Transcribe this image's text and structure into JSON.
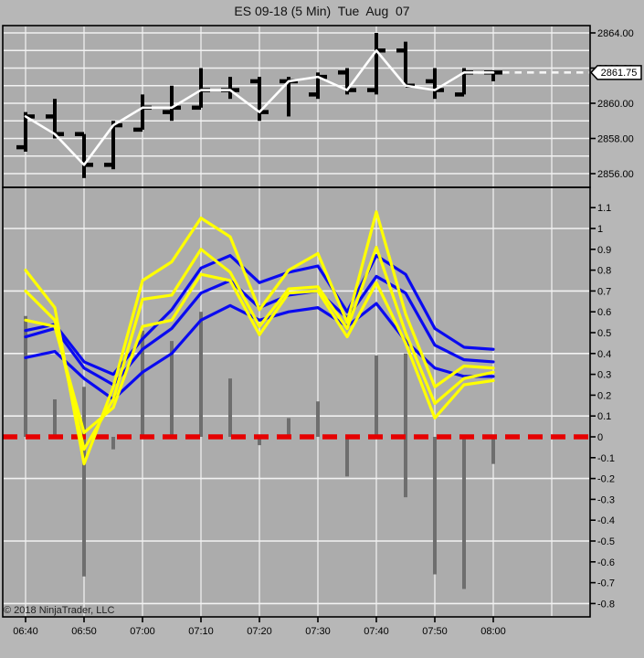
{
  "title": "ES 09-18 (5 Min)  Tue  Aug  07",
  "copyright": "© 2018 NinjaTrader, LLC",
  "price_marker": {
    "value": "2861.75"
  },
  "colors": {
    "outer_background": "#b7b7b7",
    "plot_background": "#acacac",
    "grid_vertical": "#e2e2e2",
    "grid_horizontal": "#f2f2f2",
    "border": "#000000",
    "ohlc_bar": "#000000",
    "close_line": "#ffffff",
    "last_price_dash": "#f5f5f5",
    "yellow_line": "#ffff00",
    "blue_line": "#0a0af0",
    "histogram": "#6e6e6e",
    "zero_line": "#e60000",
    "axis_text": "#000000",
    "marker_bg": "#ffffff"
  },
  "x_axis": {
    "labels": [
      "06:40",
      "06:50",
      "07:00",
      "07:10",
      "07:20",
      "07:30",
      "07:40",
      "07:50",
      "08:00"
    ]
  },
  "chart_data": [
    {
      "type": "ohlc",
      "name": "price-panel",
      "times": [
        "06:40",
        "06:45",
        "06:50",
        "06:55",
        "07:00",
        "07:05",
        "07:10",
        "07:15",
        "07:20",
        "07:25",
        "07:30",
        "07:35",
        "07:40",
        "07:45",
        "07:50",
        "07:55",
        "08:00"
      ],
      "open": [
        2857.5,
        2859.25,
        2858.25,
        2856.5,
        2858.5,
        2859.5,
        2859.75,
        2860.75,
        2861.25,
        2861.25,
        2860.5,
        2861.75,
        2860.75,
        2863.0,
        2861.25,
        2860.5,
        2861.75
      ],
      "high": [
        2859.5,
        2860.25,
        2858.25,
        2859.0,
        2860.5,
        2861.0,
        2862.0,
        2861.5,
        2861.5,
        2861.5,
        2861.75,
        2862.0,
        2864.0,
        2863.5,
        2862.0,
        2862.0,
        2861.75
      ],
      "low": [
        2857.25,
        2858.0,
        2855.75,
        2856.25,
        2858.5,
        2859.0,
        2859.75,
        2860.25,
        2859.0,
        2859.25,
        2860.25,
        2860.5,
        2860.5,
        2861.0,
        2860.25,
        2860.5,
        2861.25
      ],
      "close": [
        2859.25,
        2858.25,
        2856.5,
        2858.75,
        2859.75,
        2859.75,
        2860.75,
        2860.75,
        2859.5,
        2861.25,
        2861.5,
        2860.75,
        2863.0,
        2861.0,
        2860.75,
        2861.75,
        2861.75
      ],
      "close_line_overlay": true,
      "last_price": 2861.75,
      "y_ticks": [
        {
          "label": "2864.00",
          "value": 2864
        },
        {
          "label": "2862.00",
          "value": 2862
        },
        {
          "label": "2860.00",
          "value": 2860
        },
        {
          "label": "2858.00",
          "value": 2858
        },
        {
          "label": "2856.00",
          "value": 2856
        }
      ],
      "grid_values": [
        2864,
        2863,
        2862,
        2861,
        2860,
        2859,
        2858,
        2857,
        2856
      ],
      "ylim": [
        2855.2,
        2864.4
      ]
    },
    {
      "type": "line",
      "name": "indicator-panel",
      "times": [
        "06:40",
        "06:45",
        "06:50",
        "06:55",
        "07:00",
        "07:05",
        "07:10",
        "07:15",
        "07:20",
        "07:25",
        "07:30",
        "07:35",
        "07:40",
        "07:45",
        "07:50",
        "07:55",
        "08:00"
      ],
      "series": [
        {
          "name": "blue-slow",
          "color": "blue",
          "values": [
            0.38,
            0.41,
            0.28,
            0.18,
            0.31,
            0.4,
            0.56,
            0.63,
            0.56,
            0.6,
            0.62,
            0.53,
            0.64,
            0.46,
            0.33,
            0.29,
            0.29
          ]
        },
        {
          "name": "blue-mid",
          "color": "blue",
          "values": [
            0.48,
            0.52,
            0.33,
            0.25,
            0.42,
            0.52,
            0.69,
            0.75,
            0.62,
            0.68,
            0.7,
            0.57,
            0.77,
            0.69,
            0.44,
            0.37,
            0.36
          ]
        },
        {
          "name": "blue-fast",
          "color": "blue",
          "values": [
            0.51,
            0.54,
            0.36,
            0.3,
            0.47,
            0.61,
            0.81,
            0.87,
            0.74,
            0.79,
            0.82,
            0.6,
            0.87,
            0.78,
            0.52,
            0.43,
            0.42
          ]
        },
        {
          "name": "yellow-slow",
          "color": "yellow",
          "values": [
            0.56,
            0.53,
            0.02,
            0.14,
            0.53,
            0.56,
            0.78,
            0.75,
            0.49,
            0.69,
            0.7,
            0.48,
            0.74,
            0.45,
            0.09,
            0.25,
            0.27
          ]
        },
        {
          "name": "yellow-mid",
          "color": "yellow",
          "values": [
            0.7,
            0.56,
            -0.06,
            0.18,
            0.66,
            0.68,
            0.9,
            0.79,
            0.53,
            0.71,
            0.72,
            0.52,
            0.91,
            0.5,
            0.16,
            0.28,
            0.31
          ]
        },
        {
          "name": "yellow-fast",
          "color": "yellow",
          "values": [
            0.8,
            0.62,
            -0.13,
            0.24,
            0.75,
            0.84,
            1.05,
            0.96,
            0.61,
            0.8,
            0.88,
            0.55,
            1.08,
            0.59,
            0.24,
            0.34,
            0.33
          ]
        }
      ],
      "histogram": {
        "color": "gray",
        "ranges": [
          [
            0.58,
            0
          ],
          [
            0.18,
            0
          ],
          [
            0.24,
            -0.67
          ],
          [
            0,
            -0.06
          ],
          [
            0.51,
            0
          ],
          [
            0.46,
            0
          ],
          [
            0.6,
            0
          ],
          [
            0.28,
            0
          ],
          [
            0,
            -0.04
          ],
          [
            0.09,
            0
          ],
          [
            0.17,
            0
          ],
          [
            0,
            -0.19
          ],
          [
            0.39,
            0
          ],
          [
            0.4,
            -0.29
          ],
          [
            0,
            -0.66
          ],
          [
            0,
            -0.73
          ],
          [
            0,
            -0.13
          ]
        ]
      },
      "zero_line": {
        "value": 0,
        "style": "dashed",
        "color": "red"
      },
      "y_ticks": [
        {
          "label": "1.1",
          "value": 1.1
        },
        {
          "label": "1",
          "value": 1.0
        },
        {
          "label": "0.9",
          "value": 0.9
        },
        {
          "label": "0.8",
          "value": 0.8
        },
        {
          "label": "0.7",
          "value": 0.7
        },
        {
          "label": "0.6",
          "value": 0.6
        },
        {
          "label": "0.5",
          "value": 0.5
        },
        {
          "label": "0.4",
          "value": 0.4
        },
        {
          "label": "0.3",
          "value": 0.3
        },
        {
          "label": "0.2",
          "value": 0.2
        },
        {
          "label": "0.1",
          "value": 0.1
        },
        {
          "label": "0",
          "value": 0.0
        },
        {
          "label": "-0.1",
          "value": -0.1
        },
        {
          "label": "-0.2",
          "value": -0.2
        },
        {
          "label": "-0.3",
          "value": -0.3
        },
        {
          "label": "-0.4",
          "value": -0.4
        },
        {
          "label": "-0.5",
          "value": -0.5
        },
        {
          "label": "-0.6",
          "value": -0.6
        },
        {
          "label": "-0.7",
          "value": -0.7
        },
        {
          "label": "-0.8",
          "value": -0.8
        }
      ],
      "grid_values": [
        1.0,
        0.7,
        0.4,
        0.1,
        -0.2,
        -0.5,
        -0.8
      ],
      "ylim": [
        -0.87,
        1.2
      ]
    }
  ]
}
